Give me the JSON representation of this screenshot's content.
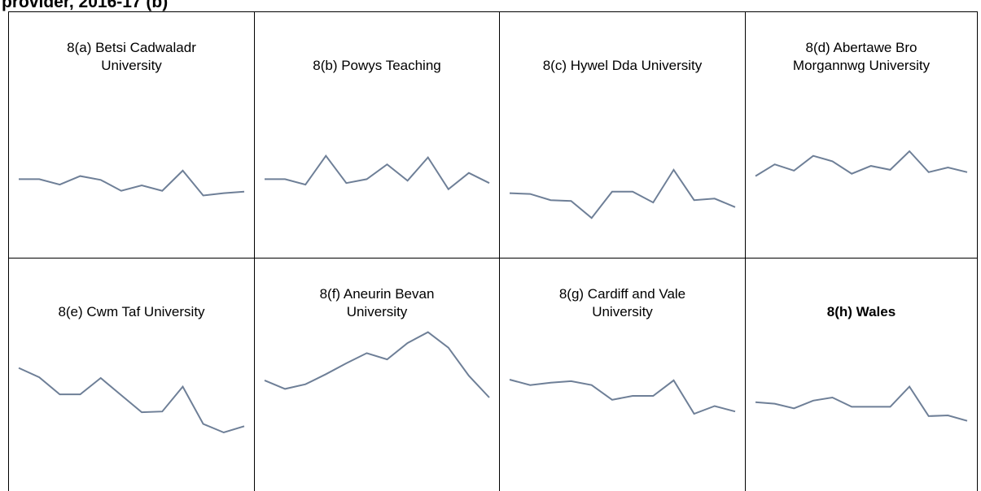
{
  "title": "provider, 2016-17 (b)",
  "chart_data": [
    {
      "type": "line",
      "title": [
        "8(a) Betsi Cadwaladr",
        "University"
      ],
      "values": [
        101,
        101,
        94,
        105,
        100,
        86,
        93,
        86,
        112,
        80,
        83,
        85
      ],
      "color": "#6e7f97",
      "ylim": [
        0,
        230
      ],
      "title_bold": false
    },
    {
      "type": "line",
      "title": [
        "8(b) Powys Teaching"
      ],
      "values": [
        101,
        101,
        94,
        131,
        96,
        101,
        120,
        99,
        129,
        88,
        109,
        96
      ],
      "color": "#6e7f97",
      "ylim": [
        0,
        230
      ],
      "title_bold": false
    },
    {
      "type": "line",
      "title": [
        "8(c) Hywel Dda University"
      ],
      "values": [
        83,
        82,
        74,
        73,
        51,
        85,
        85,
        71,
        113,
        74,
        76,
        65
      ],
      "color": "#6e7f97",
      "ylim": [
        0,
        230
      ],
      "title_bold": false
    },
    {
      "type": "line",
      "title": [
        "8(d) Abertawe Bro",
        "Morgannwg University"
      ],
      "values": [
        105,
        120,
        112,
        131,
        124,
        108,
        118,
        113,
        137,
        110,
        116,
        110
      ],
      "color": "#6e7f97",
      "ylim": [
        0,
        230
      ],
      "title_bold": false
    },
    {
      "type": "line",
      "title": [
        "8(e) Cwm Taf University"
      ],
      "values": [
        175,
        163,
        141,
        141,
        162,
        140,
        118,
        119,
        151,
        103,
        92,
        100
      ],
      "color": "#6e7f97",
      "ylim": [
        0,
        230
      ],
      "title_bold": false
    },
    {
      "type": "line",
      "title": [
        "8(f) Aneurin Bevan",
        "University"
      ],
      "values": [
        159,
        148,
        154,
        167,
        181,
        194,
        186,
        207,
        221,
        201,
        165,
        137
      ],
      "color": "#6e7f97",
      "ylim": [
        0,
        230
      ],
      "title_bold": false
    },
    {
      "type": "line",
      "title": [
        "8(g) Cardiff and Vale",
        "University"
      ],
      "values": [
        160,
        153,
        156,
        158,
        153,
        134,
        139,
        139,
        159,
        116,
        126,
        119
      ],
      "color": "#6e7f97",
      "ylim": [
        0,
        230
      ],
      "title_bold": false
    },
    {
      "type": "line",
      "title": [
        "8(h) Wales"
      ],
      "values": [
        131,
        129,
        123,
        133,
        137,
        125,
        125,
        125,
        151,
        113,
        114,
        107
      ],
      "color": "#6e7f97",
      "ylim": [
        0,
        230
      ],
      "title_bold": true
    }
  ]
}
